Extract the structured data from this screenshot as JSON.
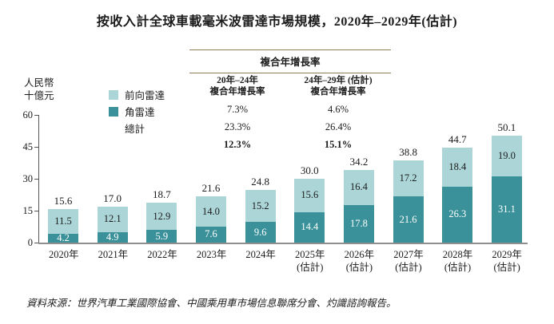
{
  "cagr_table": {
    "title": "複合年增長率",
    "columns": [
      {
        "line1": "20年–24年",
        "line2": "複合年增長率"
      },
      {
        "line1": "24年–29年 (估計)",
        "line2": "複合年增長率"
      }
    ],
    "rows": [
      {
        "label": "前向雷達",
        "values": [
          "7.3%",
          "4.6%"
        ],
        "bold": false
      },
      {
        "label": "角雷達",
        "values": [
          "23.3%",
          "26.4%"
        ],
        "bold": false
      },
      {
        "label": "總計",
        "values": [
          "12.3%",
          "15.1%"
        ],
        "bold": true
      }
    ]
  },
  "legend": {
    "items": [
      {
        "label": "前向雷達",
        "color": "#abd5d7"
      },
      {
        "label": "角雷達",
        "color": "#3a919a"
      },
      {
        "label": "總計",
        "color": null
      }
    ]
  },
  "chart_data": {
    "type": "bar",
    "stacked": true,
    "title": "按收入計全球車載毫米波雷達市場規模，2020年–2029年(估計)",
    "ylabel": "人民幣十億元",
    "y_unit_lines": [
      "人民幣",
      "十億元"
    ],
    "ylim": [
      0,
      60
    ],
    "yticks": [
      0,
      15,
      30,
      45,
      60
    ],
    "grid": false,
    "legend_position": "top-left",
    "categories": [
      [
        "2020年"
      ],
      [
        "2021年"
      ],
      [
        "2022年"
      ],
      [
        "2023年"
      ],
      [
        "2024年"
      ],
      [
        "2025年",
        "(估計)"
      ],
      [
        "2026年",
        "(估計)"
      ],
      [
        "2027年",
        "(估計)"
      ],
      [
        "2028年",
        "(估計)"
      ],
      [
        "2029年",
        "(估計)"
      ]
    ],
    "series": [
      {
        "name": "前向雷達",
        "stack_position": "top",
        "color": "#abd5d7",
        "text_color": "#1b1b1b",
        "values": [
          11.5,
          12.1,
          12.9,
          14.0,
          15.2,
          15.6,
          16.4,
          17.2,
          18.4,
          19.0
        ]
      },
      {
        "name": "角雷達",
        "stack_position": "bottom",
        "color": "#3a919a",
        "text_color": "#ffffff",
        "values": [
          4.2,
          4.9,
          5.9,
          7.6,
          9.6,
          14.4,
          17.8,
          21.6,
          26.3,
          31.1
        ]
      }
    ],
    "totals": [
      15.6,
      17.0,
      18.7,
      21.6,
      24.8,
      30.0,
      34.2,
      38.8,
      44.7,
      50.1
    ]
  },
  "source": "資料來源：世界汽車工業國際協會、中國乘用車市場信息聯席分會、灼識諮詢報告。",
  "colors": {
    "rule": "#8f7d57",
    "axis": "#555555",
    "baseline": "#8e8e8e",
    "forward_radar": "#abd5d7",
    "corner_radar": "#3a919a"
  }
}
